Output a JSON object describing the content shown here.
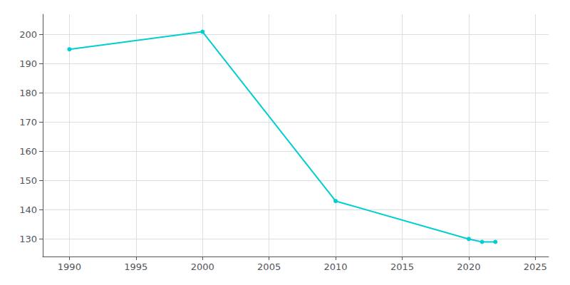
{
  "chart_data": {
    "type": "line",
    "x": [
      1990,
      2000,
      2010,
      2020,
      2021,
      2022
    ],
    "values": [
      195,
      201,
      143,
      130,
      129,
      129
    ],
    "color": "#00CED1",
    "marker": "circle",
    "xlim": [
      1988,
      2026
    ],
    "xticks": [
      1990,
      1995,
      2000,
      2005,
      2010,
      2015,
      2020,
      2025
    ],
    "ylim": [
      124,
      207
    ],
    "yticks": [
      130,
      140,
      150,
      160,
      170,
      180,
      190,
      200
    ],
    "grid": true
  }
}
